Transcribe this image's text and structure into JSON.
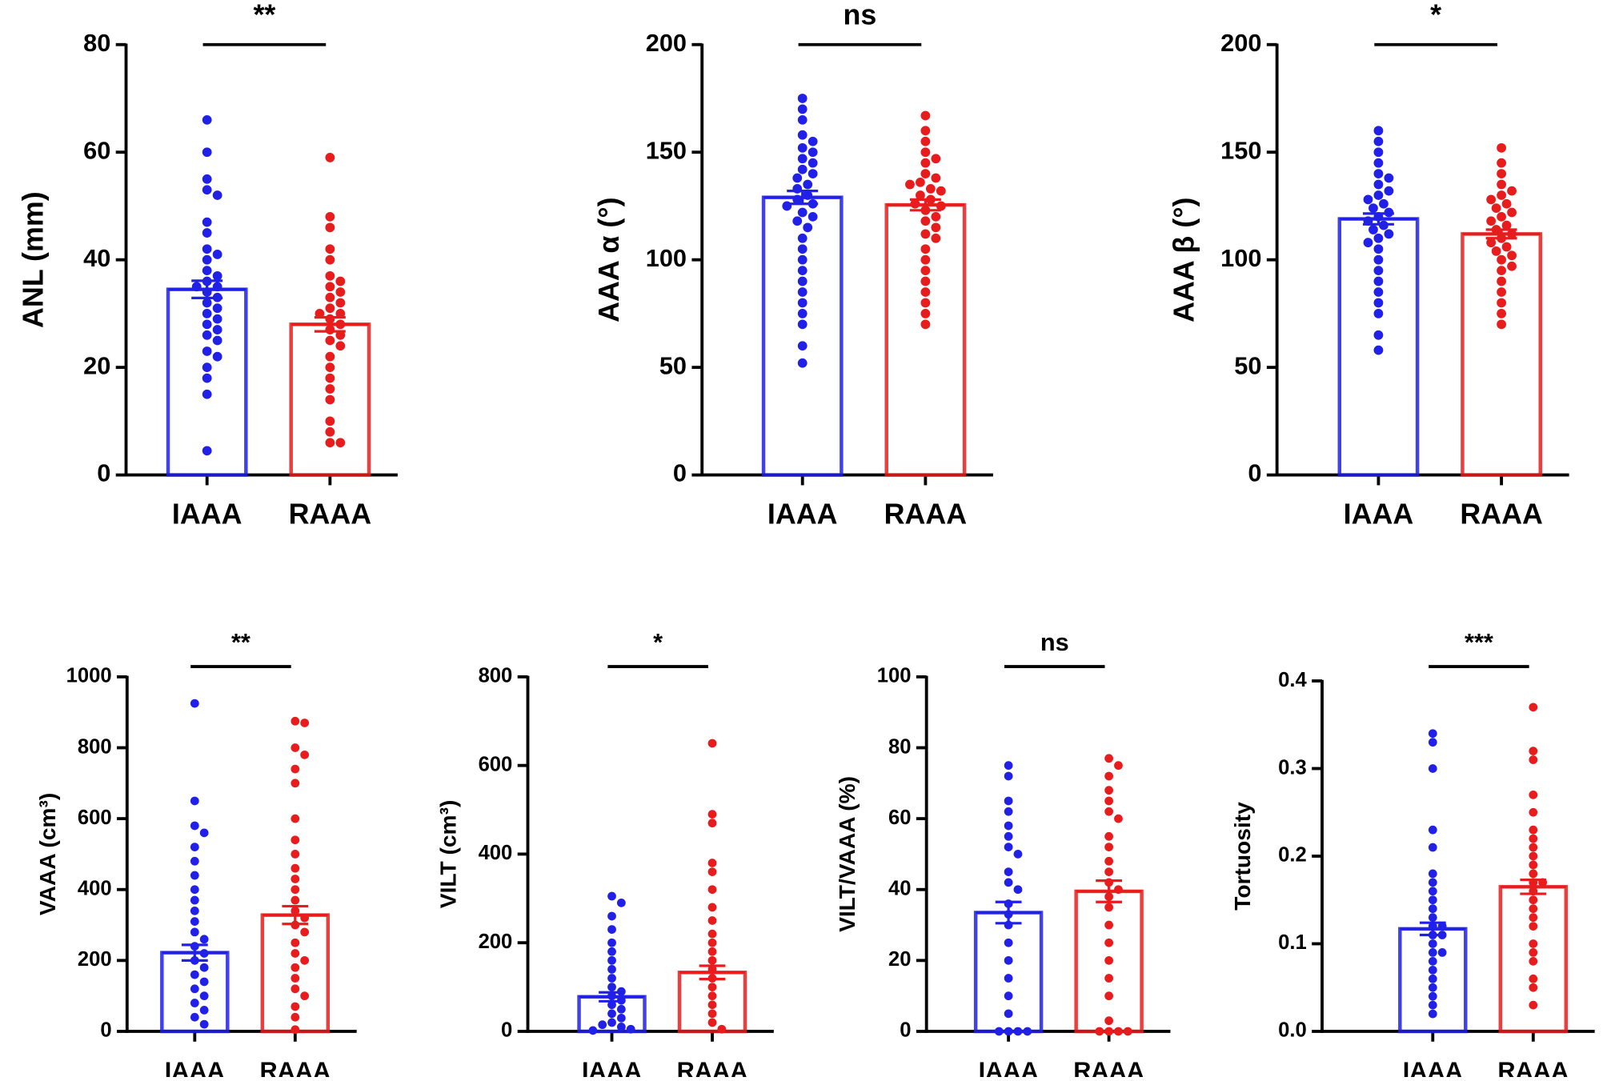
{
  "chart_data": [
    {
      "type": "bar",
      "ylabel": "ANL (mm)",
      "annotation": "**",
      "categories": [
        "IAAA",
        "RAAA"
      ],
      "colors": [
        "#2020e8",
        "#e81c1c"
      ],
      "values": [
        34.5,
        28
      ],
      "errors": [
        1.6,
        1.3
      ],
      "ylim": [
        0,
        80
      ],
      "yticks": [
        0,
        20,
        40,
        60,
        80
      ],
      "points": [
        [
          66,
          60,
          55,
          53,
          52,
          47,
          45,
          42,
          41,
          40,
          38,
          37,
          36,
          35,
          35,
          34,
          33,
          32,
          31,
          30,
          29,
          28,
          27,
          26,
          25,
          23,
          22,
          20,
          18,
          15,
          4.5
        ],
        [
          59,
          48,
          46,
          42,
          40,
          37,
          36,
          35,
          34,
          33,
          32,
          31,
          30,
          30,
          29,
          28,
          27,
          26,
          25,
          24,
          22,
          20,
          18,
          16,
          14,
          10,
          8,
          6,
          6
        ]
      ]
    },
    {
      "type": "bar",
      "ylabel": "AAA α (°)",
      "annotation": "ns",
      "categories": [
        "IAAA",
        "RAAA"
      ],
      "colors": [
        "#2020e8",
        "#e81c1c"
      ],
      "values": [
        129,
        125.5
      ],
      "errors": [
        3,
        2.5
      ],
      "ylim": [
        0,
        200
      ],
      "yticks": [
        0,
        50,
        100,
        150,
        200
      ],
      "points": [
        [
          175,
          170,
          165,
          158,
          155,
          152,
          150,
          147,
          145,
          142,
          140,
          138,
          135,
          133,
          130,
          128,
          126,
          125,
          122,
          120,
          118,
          115,
          110,
          105,
          100,
          95,
          90,
          85,
          80,
          75,
          70,
          60,
          52
        ],
        [
          167,
          160,
          155,
          150,
          147,
          145,
          140,
          138,
          136,
          135,
          133,
          132,
          130,
          128,
          126,
          125,
          123,
          120,
          118,
          115,
          112,
          110,
          105,
          100,
          95,
          90,
          85,
          80,
          75,
          70
        ]
      ]
    },
    {
      "type": "bar",
      "ylabel": "AAA β (°)",
      "annotation": "*",
      "categories": [
        "IAAA",
        "RAAA"
      ],
      "colors": [
        "#2020e8",
        "#e81c1c"
      ],
      "values": [
        119,
        112
      ],
      "errors": [
        2.5,
        2
      ],
      "ylim": [
        0,
        200
      ],
      "yticks": [
        0,
        50,
        100,
        150,
        200
      ],
      "points": [
        [
          160,
          155,
          150,
          145,
          140,
          138,
          135,
          132,
          130,
          128,
          126,
          124,
          122,
          120,
          118,
          116,
          114,
          112,
          110,
          108,
          105,
          100,
          95,
          90,
          85,
          80,
          75,
          65,
          58
        ],
        [
          152,
          145,
          140,
          135,
          132,
          130,
          128,
          126,
          124,
          122,
          120,
          118,
          116,
          114,
          112,
          110,
          108,
          106,
          104,
          102,
          100,
          97,
          95,
          90,
          85,
          80,
          75,
          70
        ]
      ]
    },
    {
      "type": "bar",
      "ylabel": "VAAA (cm³)",
      "annotation": "**",
      "categories": [
        "IAAA",
        "RAAA"
      ],
      "colors": [
        "#2020e8",
        "#e81c1c"
      ],
      "values": [
        222,
        328
      ],
      "errors": [
        22,
        25
      ],
      "ylim": [
        0,
        1000
      ],
      "yticks": [
        0,
        200,
        400,
        600,
        800,
        1000
      ],
      "points": [
        [
          925,
          650,
          580,
          560,
          520,
          480,
          440,
          400,
          370,
          340,
          310,
          280,
          260,
          240,
          220,
          200,
          180,
          160,
          140,
          120,
          100,
          80,
          60,
          40,
          20
        ],
        [
          875,
          870,
          800,
          780,
          740,
          700,
          600,
          540,
          500,
          460,
          430,
          400,
          370,
          340,
          320,
          300,
          280,
          250,
          220,
          200,
          180,
          150,
          120,
          100,
          70,
          40,
          5
        ]
      ]
    },
    {
      "type": "bar",
      "ylabel": "VILT (cm³)",
      "annotation": "*",
      "categories": [
        "IAAA",
        "RAAA"
      ],
      "colors": [
        "#2020e8",
        "#e81c1c"
      ],
      "values": [
        78,
        133
      ],
      "errors": [
        10,
        15
      ],
      "ylim": [
        0,
        800
      ],
      "yticks": [
        0,
        200,
        400,
        600,
        800
      ],
      "points": [
        [
          305,
          290,
          260,
          230,
          200,
          180,
          160,
          140,
          120,
          100,
          90,
          80,
          70,
          60,
          50,
          40,
          30,
          20,
          15,
          10,
          5,
          2
        ],
        [
          650,
          490,
          470,
          380,
          360,
          320,
          280,
          250,
          220,
          200,
          180,
          160,
          140,
          120,
          100,
          80,
          60,
          40,
          20,
          5
        ]
      ]
    },
    {
      "type": "bar",
      "ylabel": "VILT/VAAA (%)",
      "annotation": "ns",
      "categories": [
        "IAAA",
        "RAAA"
      ],
      "colors": [
        "#2020e8",
        "#e81c1c"
      ],
      "values": [
        33.5,
        39.5
      ],
      "errors": [
        3,
        3
      ],
      "ylim": [
        0,
        100
      ],
      "yticks": [
        0,
        20,
        40,
        60,
        80,
        100
      ],
      "points": [
        [
          75,
          72,
          65,
          62,
          58,
          55,
          52,
          50,
          45,
          42,
          40,
          36,
          33,
          30,
          25,
          20,
          15,
          10,
          5,
          0,
          0,
          0,
          0
        ],
        [
          77,
          75,
          72,
          68,
          65,
          62,
          60,
          55,
          52,
          48,
          45,
          42,
          40,
          38,
          35,
          30,
          25,
          20,
          15,
          10,
          3,
          0,
          0,
          0,
          0
        ]
      ]
    },
    {
      "type": "bar",
      "ylabel": "Tortuosity",
      "annotation": "***",
      "categories": [
        "IAAA",
        "RAAA"
      ],
      "colors": [
        "#2020e8",
        "#e81c1c"
      ],
      "values": [
        0.117,
        0.165
      ],
      "errors": [
        0.007,
        0.008
      ],
      "ylim": [
        0,
        0.4
      ],
      "yticks": [
        {
          "value": 0,
          "label": "0.0"
        },
        0.1,
        0.2,
        0.3,
        0.4
      ],
      "points": [
        [
          0.34,
          0.33,
          0.3,
          0.23,
          0.21,
          0.18,
          0.17,
          0.16,
          0.15,
          0.14,
          0.13,
          0.12,
          0.12,
          0.11,
          0.11,
          0.1,
          0.09,
          0.09,
          0.08,
          0.07,
          0.06,
          0.05,
          0.04,
          0.03,
          0.02
        ],
        [
          0.37,
          0.32,
          0.31,
          0.27,
          0.25,
          0.23,
          0.22,
          0.21,
          0.2,
          0.19,
          0.18,
          0.17,
          0.17,
          0.16,
          0.15,
          0.14,
          0.13,
          0.12,
          0.1,
          0.09,
          0.08,
          0.06,
          0.05,
          0.03
        ]
      ]
    }
  ]
}
